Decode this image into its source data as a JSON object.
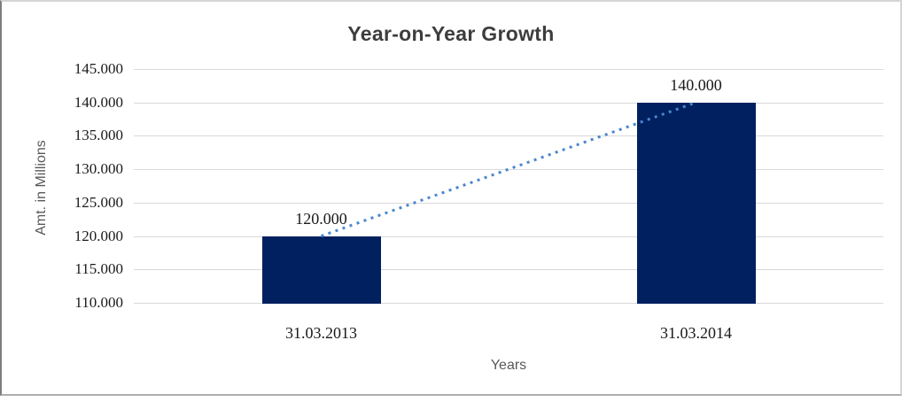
{
  "chart_data": {
    "type": "bar",
    "title": "Year-on-Year Growth",
    "categories": [
      "31.03.2013",
      "31.03.2014"
    ],
    "values": [
      120,
      140
    ],
    "value_labels": [
      "120.000",
      "140.000"
    ],
    "xlabel": "Years",
    "ylabel": "Amt. in Millions",
    "ylim": [
      110,
      145
    ],
    "ytick_step": 5,
    "ytick_labels": [
      "145.000",
      "140.000",
      "135.000",
      "130.000",
      "125.000",
      "120.000",
      "115.000",
      "110.000"
    ],
    "grid": true,
    "legend": "none",
    "bar_color": "#002060",
    "trendline": {
      "style": "dotted",
      "color": "#4a86cd",
      "from_category": "31.03.2013",
      "from_value": 120,
      "to_category": "31.03.2014",
      "to_value": 140
    },
    "title_color": "#3d3d3d",
    "tick_label_color": "#1a1a1a",
    "axis_title_color": "#595959",
    "gridline_color": "#d9d9d9"
  }
}
